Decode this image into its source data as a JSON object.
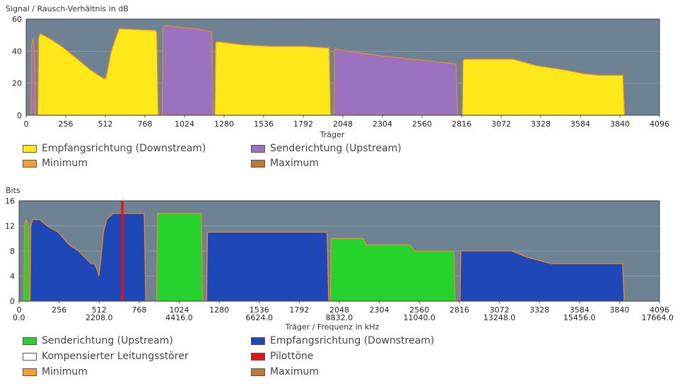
{
  "chart_data": [
    {
      "type": "area",
      "ylabel": "Signal / Rausch-Verhältnis in dB",
      "xlabel": "Träger",
      "ylim": [
        0,
        60
      ],
      "xlim": [
        0,
        4096
      ],
      "yticks": [
        "0",
        "20",
        "40",
        "60"
      ],
      "xticks": [
        "0",
        "256",
        "512",
        "768",
        "1024",
        "1280",
        "1536",
        "1792",
        "2048",
        "2304",
        "2560",
        "2816",
        "3072",
        "3328",
        "3584",
        "3840",
        "4096"
      ],
      "background_color": "#6d8394",
      "grid": true,
      "series": [
        {
          "name": "Empfangsrichtung (Downstream)",
          "color": "#ffe81a",
          "segments": [
            {
              "x": [
                75,
                80,
                90,
                150,
                230,
                320,
                420,
                500,
                515,
                530,
                550,
                600,
                830,
                845,
                855
              ],
              "y": [
                0,
                48,
                51,
                48,
                43,
                36,
                28,
                23,
                23,
                30,
                40,
                54,
                53,
                52,
                0
              ]
            },
            {
              "x": [
                1220,
                1225,
                1235,
                1400,
                1600,
                1800,
                1960,
                1970
              ],
              "y": [
                0,
                45,
                46,
                44,
                43,
                43,
                42,
                0
              ]
            },
            {
              "x": [
                2820,
                2825,
                2835,
                2900,
                3050,
                3150,
                3300,
                3500,
                3600,
                3700,
                3800,
                3860,
                3870
              ],
              "y": [
                0,
                34,
                35,
                35,
                35,
                35,
                31,
                28,
                26,
                25,
                25,
                25,
                0
              ]
            }
          ]
        },
        {
          "name": "Senderichtung (Upstream)",
          "color": "#9b72bd",
          "segments": [
            {
              "x": [
                30,
                35,
                45,
                55,
                60
              ],
              "y": [
                0,
                42,
                48,
                40,
                0
              ]
            },
            {
              "x": [
                880,
                885,
                895,
                1100,
                1200,
                1210
              ],
              "y": [
                0,
                54,
                56,
                54,
                52,
                0
              ]
            },
            {
              "x": [
                1990,
                1995,
                2010,
                2300,
                2600,
                2780,
                2790
              ],
              "y": [
                0,
                41,
                41,
                37,
                34,
                32,
                0
              ]
            }
          ]
        }
      ],
      "legend": [
        {
          "label": "Empfangsrichtung (Downstream)",
          "color": "#ffe81a"
        },
        {
          "label": "Senderichtung (Upstream)",
          "color": "#9b72bd"
        },
        {
          "label": "Minimum",
          "color": "#f5a032"
        },
        {
          "label": "Maximum",
          "color": "#c07a38"
        }
      ]
    },
    {
      "type": "area",
      "ylabel": "Bits",
      "xlabel": "Träger / Frequenz in kHz",
      "ylim": [
        0,
        16
      ],
      "xlim": [
        0,
        4096
      ],
      "yticks": [
        "0",
        "4",
        "8",
        "12",
        "16"
      ],
      "xticks": [
        "0",
        "256",
        "512",
        "768",
        "1024",
        "1280",
        "1536",
        "1792",
        "2048",
        "2304",
        "2560",
        "2816",
        "3072",
        "3328",
        "3584",
        "3840",
        "4096"
      ],
      "xticks_secondary": [
        "0.0",
        "2208.0",
        "4416.0",
        "6624.0",
        "8832.0",
        "11040.0",
        "13248.0",
        "15456.0",
        "17664.0"
      ],
      "background_color": "#6d8394",
      "grid": true,
      "series": [
        {
          "name": "Empfangsrichtung (Downstream)",
          "color": "#1e47b8",
          "segments": [
            {
              "x": [
                70,
                75,
                85,
                130,
                180,
                250,
                320,
                380,
                420,
                460,
                480,
                500,
                510,
                520,
                540,
                560,
                600,
                780,
                800,
                810
              ],
              "y": [
                0,
                12,
                13,
                13,
                12,
                11,
                9,
                8,
                7,
                6,
                6,
                5,
                4,
                6,
                11,
                13,
                14,
                14,
                14,
                0
              ]
            },
            {
              "x": [
                1200,
                1205,
                1215,
                1500,
                1800,
                1970,
                1980
              ],
              "y": [
                0,
                11,
                11,
                11,
                11,
                11,
                0
              ]
            },
            {
              "x": [
                2820,
                2825,
                2835,
                3150,
                3250,
                3400,
                3550,
                3700,
                3860,
                3870
              ],
              "y": [
                0,
                8,
                8,
                8,
                7,
                6,
                6,
                6,
                6,
                0
              ]
            }
          ]
        },
        {
          "name": "Senderichtung (Upstream)",
          "color": "#25d32c",
          "segments": [
            {
              "x": [
                30,
                35,
                45,
                60,
                65
              ],
              "y": [
                0,
                12,
                13,
                12,
                0
              ]
            },
            {
              "x": [
                880,
                885,
                895,
                1150,
                1165,
                1175
              ],
              "y": [
                0,
                14,
                14,
                14,
                14,
                0
              ]
            },
            {
              "x": [
                1990,
                1995,
                2005,
                2200,
                2220,
                2500,
                2530,
                2780,
                2790
              ],
              "y": [
                0,
                10,
                10,
                10,
                9,
                9,
                8,
                8,
                0
              ]
            }
          ]
        }
      ],
      "pilot_tones": [
        {
          "x": 660,
          "y": 16
        }
      ],
      "legend": [
        {
          "label": "Senderichtung (Upstream)",
          "color": "#25d32c"
        },
        {
          "label": "Empfangsrichtung (Downstream)",
          "color": "#1e47b8"
        },
        {
          "label": "Kompensierter Leitungsstörer",
          "color": "#ffffff"
        },
        {
          "label": "Pilottöne",
          "color": "#e0141a"
        },
        {
          "label": "Minimum",
          "color": "#f5a032"
        },
        {
          "label": "Maximum",
          "color": "#c07a38"
        }
      ]
    }
  ]
}
